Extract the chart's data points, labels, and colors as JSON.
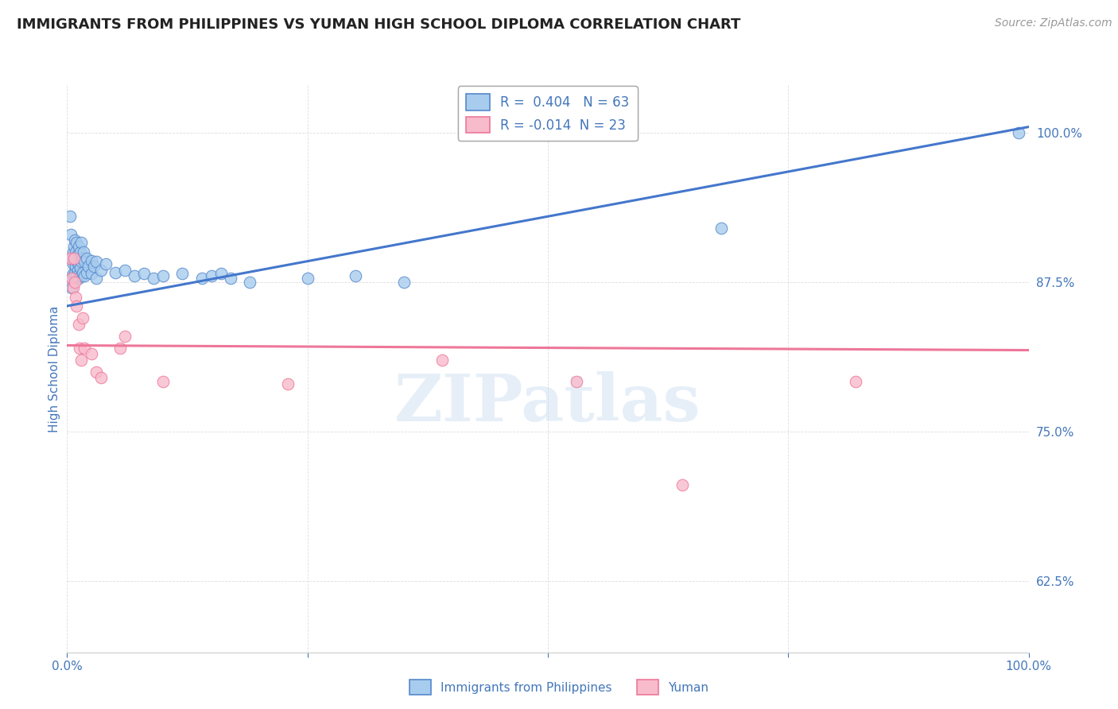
{
  "title": "IMMIGRANTS FROM PHILIPPINES VS YUMAN HIGH SCHOOL DIPLOMA CORRELATION CHART",
  "source": "Source: ZipAtlas.com",
  "ylabel": "High School Diploma",
  "xlim": [
    0.0,
    1.0
  ],
  "ylim": [
    0.565,
    1.04
  ],
  "ytick_positions": [
    0.625,
    0.75,
    0.875,
    1.0
  ],
  "ytick_labels": [
    "62.5%",
    "75.0%",
    "87.5%",
    "100.0%"
  ],
  "R_blue": "0.404",
  "N_blue": "63",
  "R_pink": "-0.014",
  "N_pink": "23",
  "legend_label_blue": "Immigrants from Philippines",
  "legend_label_pink": "Yuman",
  "watermark": "ZIPatlas",
  "blue_fill": "#A8CCEE",
  "blue_edge": "#5588CC",
  "pink_fill": "#F8BBCC",
  "pink_edge": "#EE7799",
  "line_blue": "#4477CC",
  "line_pink": "#EE7799",
  "blue_scatter": [
    [
      0.003,
      0.93
    ],
    [
      0.004,
      0.915
    ],
    [
      0.005,
      0.895
    ],
    [
      0.005,
      0.878
    ],
    [
      0.005,
      0.87
    ],
    [
      0.006,
      0.9
    ],
    [
      0.006,
      0.89
    ],
    [
      0.006,
      0.882
    ],
    [
      0.007,
      0.905
    ],
    [
      0.007,
      0.893
    ],
    [
      0.007,
      0.878
    ],
    [
      0.008,
      0.91
    ],
    [
      0.008,
      0.895
    ],
    [
      0.008,
      0.882
    ],
    [
      0.009,
      0.9
    ],
    [
      0.009,
      0.888
    ],
    [
      0.01,
      0.908
    ],
    [
      0.01,
      0.893
    ],
    [
      0.01,
      0.88
    ],
    [
      0.011,
      0.898
    ],
    [
      0.011,
      0.885
    ],
    [
      0.012,
      0.905
    ],
    [
      0.012,
      0.89
    ],
    [
      0.012,
      0.878
    ],
    [
      0.013,
      0.895
    ],
    [
      0.013,
      0.882
    ],
    [
      0.014,
      0.9
    ],
    [
      0.014,
      0.887
    ],
    [
      0.015,
      0.908
    ],
    [
      0.015,
      0.892
    ],
    [
      0.015,
      0.88
    ],
    [
      0.016,
      0.895
    ],
    [
      0.016,
      0.883
    ],
    [
      0.017,
      0.9
    ],
    [
      0.018,
      0.892
    ],
    [
      0.018,
      0.88
    ],
    [
      0.02,
      0.895
    ],
    [
      0.02,
      0.883
    ],
    [
      0.022,
      0.888
    ],
    [
      0.025,
      0.893
    ],
    [
      0.025,
      0.882
    ],
    [
      0.028,
      0.888
    ],
    [
      0.03,
      0.892
    ],
    [
      0.03,
      0.878
    ],
    [
      0.035,
      0.885
    ],
    [
      0.04,
      0.89
    ],
    [
      0.05,
      0.883
    ],
    [
      0.06,
      0.885
    ],
    [
      0.07,
      0.88
    ],
    [
      0.08,
      0.882
    ],
    [
      0.09,
      0.878
    ],
    [
      0.1,
      0.88
    ],
    [
      0.12,
      0.882
    ],
    [
      0.14,
      0.878
    ],
    [
      0.15,
      0.88
    ],
    [
      0.16,
      0.882
    ],
    [
      0.17,
      0.878
    ],
    [
      0.19,
      0.875
    ],
    [
      0.25,
      0.878
    ],
    [
      0.3,
      0.88
    ],
    [
      0.35,
      0.875
    ],
    [
      0.68,
      0.92
    ],
    [
      0.99,
      1.0
    ]
  ],
  "pink_scatter": [
    [
      0.003,
      0.895
    ],
    [
      0.005,
      0.878
    ],
    [
      0.006,
      0.87
    ],
    [
      0.007,
      0.895
    ],
    [
      0.008,
      0.875
    ],
    [
      0.009,
      0.862
    ],
    [
      0.01,
      0.855
    ],
    [
      0.012,
      0.84
    ],
    [
      0.013,
      0.82
    ],
    [
      0.015,
      0.81
    ],
    [
      0.016,
      0.845
    ],
    [
      0.018,
      0.82
    ],
    [
      0.025,
      0.815
    ],
    [
      0.03,
      0.8
    ],
    [
      0.035,
      0.795
    ],
    [
      0.055,
      0.82
    ],
    [
      0.06,
      0.83
    ],
    [
      0.1,
      0.792
    ],
    [
      0.23,
      0.79
    ],
    [
      0.39,
      0.81
    ],
    [
      0.53,
      0.792
    ],
    [
      0.64,
      0.705
    ],
    [
      0.82,
      0.792
    ]
  ],
  "blue_trendline_x": [
    0.0,
    1.0
  ],
  "blue_trendline_y": [
    0.855,
    1.005
  ],
  "pink_trendline_x": [
    0.0,
    1.0
  ],
  "pink_trendline_y": [
    0.822,
    0.818
  ],
  "bg_color": "#FFFFFF",
  "title_color": "#222222",
  "axis_label_color": "#4477BB",
  "tick_color": "#4477BB",
  "grid_color": "#DDDDDD",
  "title_fontsize": 13,
  "source_fontsize": 10,
  "tick_fontsize": 11,
  "ylabel_fontsize": 11
}
